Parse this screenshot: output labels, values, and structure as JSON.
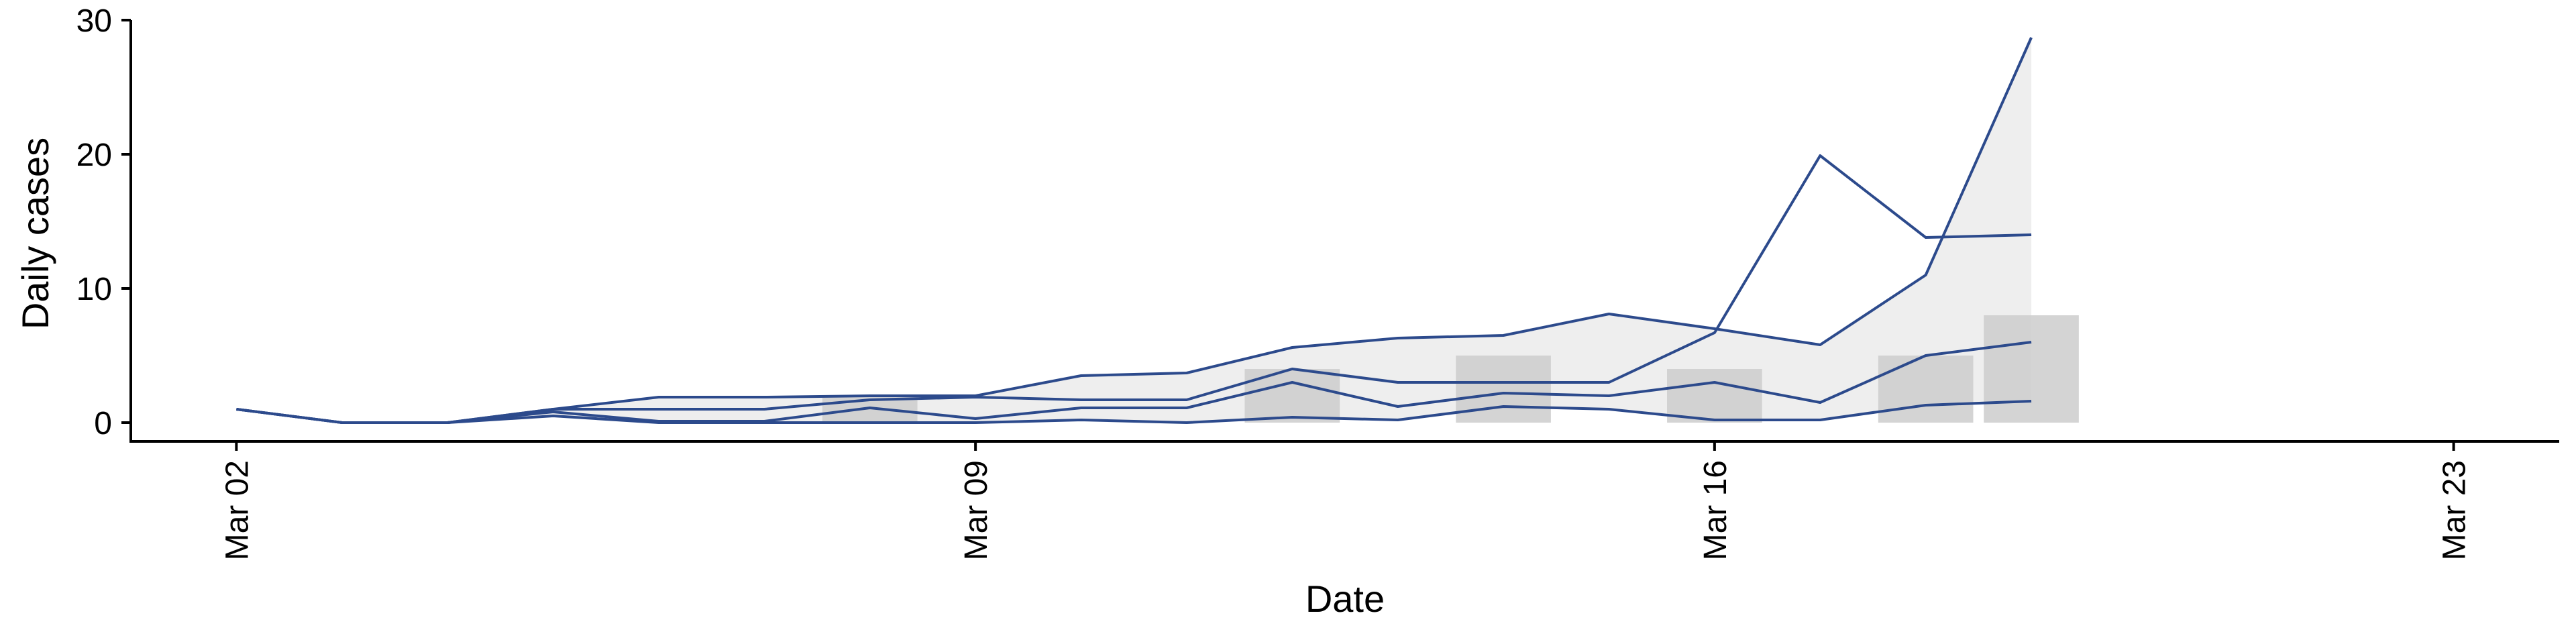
{
  "chart_data": {
    "type": "line",
    "xlabel": "Date",
    "ylabel": "Daily cases",
    "x_ticks": [
      "Mar 02",
      "Mar 09",
      "Mar 16",
      "Mar 23"
    ],
    "y_ticks": [
      0,
      10,
      20,
      30
    ],
    "xlim": [
      "2020-03-01",
      "2020-03-24"
    ],
    "ylim": [
      -1.4,
      30
    ],
    "grid": false,
    "x": [
      "2020-03-02",
      "2020-03-03",
      "2020-03-04",
      "2020-03-05",
      "2020-03-06",
      "2020-03-07",
      "2020-03-08",
      "2020-03-09",
      "2020-03-10",
      "2020-03-11",
      "2020-03-12",
      "2020-03-13",
      "2020-03-14",
      "2020-03-15",
      "2020-03-16",
      "2020-03-17",
      "2020-03-18",
      "2020-03-19"
    ],
    "bars": {
      "x": [
        "2020-03-08",
        "2020-03-12",
        "2020-03-14",
        "2020-03-16",
        "2020-03-18",
        "2020-03-19"
      ],
      "values": [
        2,
        4,
        5,
        4,
        5,
        8
      ],
      "color": "#cccccc"
    },
    "series": [
      {
        "values": [
          1,
          0,
          0,
          1,
          1.9,
          1.9,
          2,
          2,
          3.5,
          3.7,
          5.6,
          6.3,
          6.5,
          8.1,
          7,
          5.8,
          11,
          28.7
        ]
      },
      {
        "values": [
          1,
          0,
          0,
          1,
          1,
          1,
          1.7,
          1.9,
          1.7,
          1.7,
          4,
          3,
          3,
          3,
          6.7,
          19.9,
          13.8,
          14
        ]
      },
      {
        "values": [
          1,
          0,
          0,
          0.8,
          0.1,
          0.1,
          1.1,
          0.3,
          1.1,
          1.1,
          3,
          1.2,
          2.2,
          2,
          3,
          1.5,
          5,
          6
        ]
      },
      {
        "values": [
          1,
          0,
          0,
          0.5,
          0,
          0,
          0,
          0,
          0.2,
          0,
          0.4,
          0.2,
          1.2,
          1,
          0.2,
          0.2,
          1.3,
          1.6
        ]
      }
    ],
    "band": {
      "upper_series": 0,
      "lower_series": 3,
      "color": "#e8e8e8"
    },
    "line_color": "#2c4a8c"
  }
}
